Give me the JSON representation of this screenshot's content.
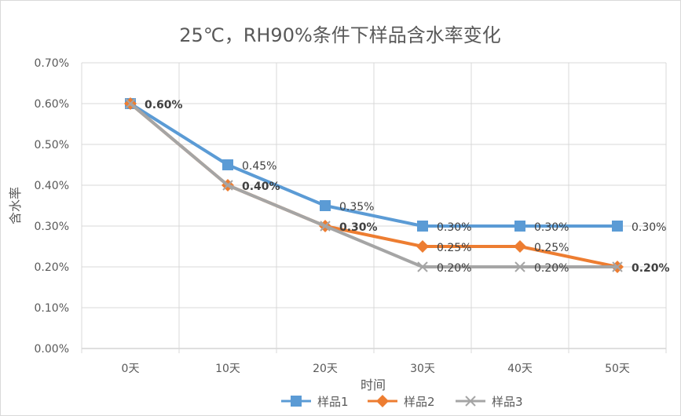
{
  "chart_data": {
    "type": "line",
    "title": "25℃，RH90%条件下样品含水率变化",
    "xlabel": "时间",
    "ylabel": "含水率",
    "categories": [
      "0天",
      "10天",
      "20天",
      "30天",
      "40天",
      "50天"
    ],
    "yticks": [
      "0.00%",
      "0.10%",
      "0.20%",
      "0.30%",
      "0.40%",
      "0.50%",
      "0.60%",
      "0.70%"
    ],
    "ylim": [
      0,
      0.7
    ],
    "grid": true,
    "legend_position": "bottom",
    "series": [
      {
        "name": "样品1",
        "color": "#5b9bd5",
        "marker": "square",
        "values": [
          0.6,
          0.45,
          0.35,
          0.3,
          0.3,
          0.3
        ],
        "labels": [
          "",
          "0.45%",
          "0.35%",
          "0.30%",
          "0.30%",
          "0.30%"
        ]
      },
      {
        "name": "样品2",
        "color": "#ed7d31",
        "marker": "diamond",
        "values": [
          0.6,
          0.4,
          0.3,
          0.25,
          0.25,
          0.2
        ],
        "labels": [
          "",
          "",
          "",
          "0.25%",
          "0.25%",
          ""
        ]
      },
      {
        "name": "样品3",
        "color": "#a5a5a5",
        "marker": "x",
        "values": [
          0.6,
          0.4,
          0.3,
          0.2,
          0.2,
          0.2
        ],
        "labels": [
          "0.60%",
          "0.40%",
          "0.30%",
          "0.20%",
          "0.20%",
          "0.20%"
        ]
      }
    ]
  }
}
